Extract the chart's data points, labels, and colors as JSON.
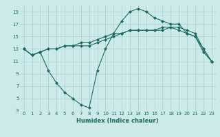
{
  "title": "",
  "xlabel": "Humidex (Indice chaleur)",
  "ylabel": "",
  "bg_color": "#cceaea",
  "grid_color": "#aacccc",
  "line_color": "#1a6b5e",
  "xlim": [
    -0.5,
    23.5
  ],
  "ylim": [
    3,
    20
  ],
  "yticks": [
    3,
    5,
    7,
    9,
    11,
    13,
    15,
    17,
    19
  ],
  "xticks": [
    0,
    1,
    2,
    3,
    4,
    5,
    6,
    7,
    8,
    9,
    10,
    11,
    12,
    13,
    14,
    15,
    16,
    17,
    18,
    19,
    20,
    21,
    22,
    23
  ],
  "line1_x": [
    0,
    1,
    2,
    3,
    4,
    5,
    6,
    7,
    8,
    9,
    10,
    11,
    12,
    13,
    14,
    15,
    16,
    17,
    18,
    19,
    20,
    21,
    22,
    23
  ],
  "line1_y": [
    13.0,
    12.0,
    12.5,
    13.0,
    13.0,
    13.5,
    13.5,
    14.0,
    14.0,
    14.5,
    15.0,
    15.5,
    15.5,
    16.0,
    16.0,
    16.0,
    16.0,
    16.5,
    16.5,
    16.5,
    16.0,
    15.5,
    13.0,
    11.0
  ],
  "line2_x": [
    0,
    1,
    2,
    3,
    4,
    5,
    6,
    7,
    8,
    9,
    10,
    11,
    12,
    13,
    14,
    15,
    16,
    17,
    18,
    19,
    20,
    21,
    22,
    23
  ],
  "line2_y": [
    13.0,
    12.0,
    12.5,
    13.0,
    13.0,
    13.5,
    13.5,
    13.5,
    13.5,
    14.0,
    14.5,
    15.0,
    15.5,
    16.0,
    16.0,
    16.0,
    16.0,
    16.0,
    16.5,
    16.0,
    15.5,
    15.0,
    12.5,
    11.0
  ],
  "line3_x": [
    0,
    1,
    2,
    3,
    4,
    5,
    6,
    7,
    8,
    9,
    10,
    11,
    12,
    13,
    14,
    15,
    16,
    17,
    18,
    19,
    20,
    21,
    22,
    23
  ],
  "line3_y": [
    13.0,
    12.0,
    12.5,
    9.5,
    7.5,
    6.0,
    5.0,
    4.0,
    3.5,
    9.5,
    13.0,
    15.5,
    17.5,
    19.0,
    19.5,
    19.0,
    18.0,
    17.5,
    17.0,
    17.0,
    15.5,
    15.0,
    13.0,
    11.0
  ],
  "marker": "D",
  "markersize": 2.0,
  "linewidth": 0.8,
  "tick_fontsize": 5.0,
  "xlabel_fontsize": 6.0
}
